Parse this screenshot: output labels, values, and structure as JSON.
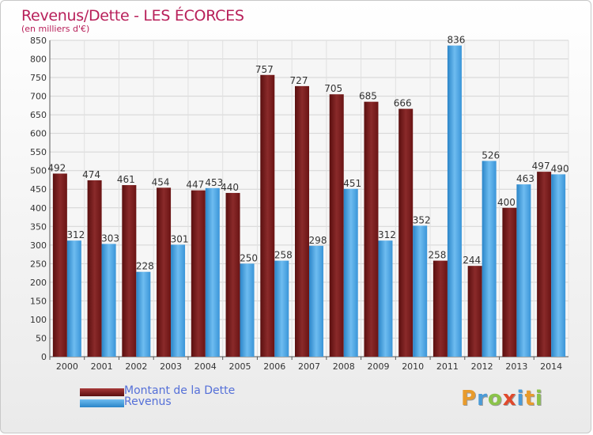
{
  "chart_data": {
    "type": "bar",
    "title": "Revenus/Dette - LES ÉCORCES",
    "subtitle": "(en milliers d'€)",
    "xlabel": "",
    "ylabel": "",
    "ylim": [
      0,
      850
    ],
    "ytick_step": 50,
    "grid": true,
    "categories": [
      "2000",
      "2001",
      "2002",
      "2003",
      "2004",
      "2005",
      "2006",
      "2007",
      "2008",
      "2009",
      "2010",
      "2011",
      "2012",
      "2013",
      "2014"
    ],
    "series": [
      {
        "name": "Montant de la Dette",
        "color": "#7a1a1a",
        "values": [
          492,
          474,
          461,
          454,
          447,
          440,
          757,
          727,
          705,
          685,
          666,
          258,
          244,
          400,
          497
        ]
      },
      {
        "name": "Revenus",
        "color": "#4aa3e0",
        "values": [
          312,
          303,
          228,
          301,
          453,
          250,
          258,
          298,
          451,
          312,
          352,
          836,
          526,
          463,
          490
        ]
      }
    ],
    "legend_position": "bottom-left"
  },
  "legend": {
    "debt_label": "Montant de la Dette",
    "revenue_label": "Revenus"
  },
  "logo": {
    "letters": [
      "P",
      "r",
      "o",
      "x",
      "i",
      "t",
      "i"
    ],
    "colors": [
      "#e89b2c",
      "#4a9bd8",
      "#8bc34a",
      "#e0492c",
      "#4a9bd8",
      "#e89b2c",
      "#8bc34a"
    ]
  }
}
